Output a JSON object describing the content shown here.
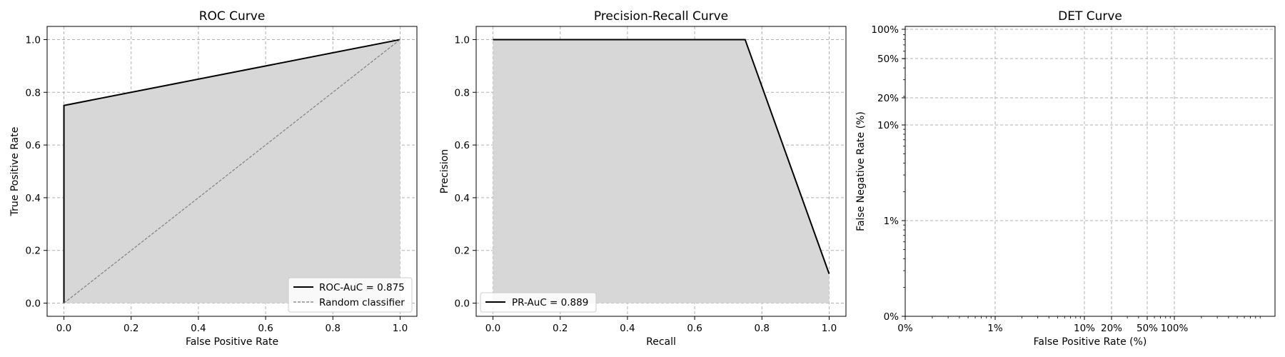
{
  "chart_data": [
    {
      "type": "line",
      "title": "ROC Curve",
      "xlabel": "False Positive Rate",
      "ylabel": "True Positive Rate",
      "xlim": [
        -0.05,
        1.05
      ],
      "ylim": [
        -0.05,
        1.05
      ],
      "xticks": [
        0.0,
        0.2,
        0.4,
        0.6,
        0.8,
        1.0
      ],
      "xtick_labels": [
        "0.0",
        "0.2",
        "0.4",
        "0.6",
        "0.8",
        "1.0"
      ],
      "yticks": [
        0.0,
        0.2,
        0.4,
        0.6,
        0.8,
        1.0
      ],
      "ytick_labels": [
        "0.0",
        "0.2",
        "0.4",
        "0.6",
        "0.8",
        "1.0"
      ],
      "grid": true,
      "legend_position": "lower-right",
      "series": [
        {
          "name": "ROC-AuC = 0.875",
          "x": [
            0.0,
            0.0,
            1.0
          ],
          "y": [
            0.0,
            0.75,
            1.0
          ],
          "style": "solid",
          "color": "#000000",
          "fill": true
        },
        {
          "name": "Random classifier",
          "x": [
            0.0,
            1.0
          ],
          "y": [
            0.0,
            1.0
          ],
          "style": "dashed",
          "color": "#808080",
          "fill": false
        }
      ]
    },
    {
      "type": "line",
      "title": "Precision-Recall Curve",
      "xlabel": "Recall",
      "ylabel": "Precision",
      "xlim": [
        -0.05,
        1.05
      ],
      "ylim": [
        -0.05,
        1.05
      ],
      "xticks": [
        0.0,
        0.2,
        0.4,
        0.6,
        0.8,
        1.0
      ],
      "xtick_labels": [
        "0.0",
        "0.2",
        "0.4",
        "0.6",
        "0.8",
        "1.0"
      ],
      "yticks": [
        0.0,
        0.2,
        0.4,
        0.6,
        0.8,
        1.0
      ],
      "ytick_labels": [
        "0.0",
        "0.2",
        "0.4",
        "0.6",
        "0.8",
        "1.0"
      ],
      "grid": true,
      "legend_position": "lower-left",
      "series": [
        {
          "name": "PR-AuC = 0.889",
          "x": [
            0.0,
            0.75,
            1.0
          ],
          "y": [
            1.0,
            1.0,
            0.111
          ],
          "style": "solid",
          "color": "#000000",
          "fill": true
        }
      ]
    },
    {
      "type": "line",
      "title": "DET Curve",
      "xlabel": "False Positive Rate (%)",
      "ylabel": "False Negative Rate (%)",
      "scale": "probit",
      "xticks": [
        0.0,
        0.01,
        0.1,
        0.2,
        0.5,
        1.0
      ],
      "xtick_labels": [
        "0%",
        "1%",
        "10%",
        "20%",
        "50%",
        "100%"
      ],
      "yticks": [
        0.0,
        0.01,
        0.1,
        0.2,
        0.5,
        1.0
      ],
      "ytick_labels": [
        "0%",
        "1%",
        "10%",
        "20%",
        "50%",
        "100%"
      ],
      "grid": true,
      "series": []
    }
  ],
  "colors": {
    "fill": "#d7d7d7",
    "grid": "#b0b0b0",
    "axis": "#000000"
  }
}
